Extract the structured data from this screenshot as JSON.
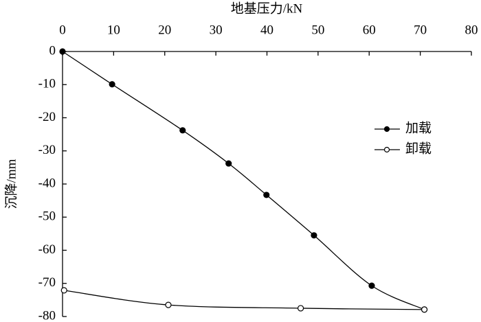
{
  "chart_data": {
    "type": "line",
    "x_label": "地基压力/kN",
    "y_label": "沉降/mm",
    "xlim": [
      0,
      80
    ],
    "xticks": [
      0,
      10,
      20,
      30,
      40,
      50,
      60,
      70,
      80
    ],
    "ylim": [
      -80,
      0
    ],
    "yticks": [
      0,
      -10,
      -20,
      -30,
      -40,
      -50,
      -60,
      -70,
      -80
    ],
    "legend": "right",
    "series": [
      {
        "name": "加载",
        "color": "#000000",
        "marker": "filled",
        "x": [
          0,
          9.7,
          23.5,
          32.5,
          39.9,
          49.2,
          60.5,
          70.8
        ],
        "values": [
          0,
          -9.9,
          -23.8,
          -33.8,
          -43.3,
          -55.5,
          -70.7,
          -77.9
        ]
      },
      {
        "name": "卸载",
        "color": "#000000",
        "marker": "open",
        "x": [
          0.3,
          20.7,
          46.6,
          70.8
        ],
        "values": [
          -72.1,
          -76.5,
          -77.5,
          -77.9
        ]
      }
    ]
  }
}
